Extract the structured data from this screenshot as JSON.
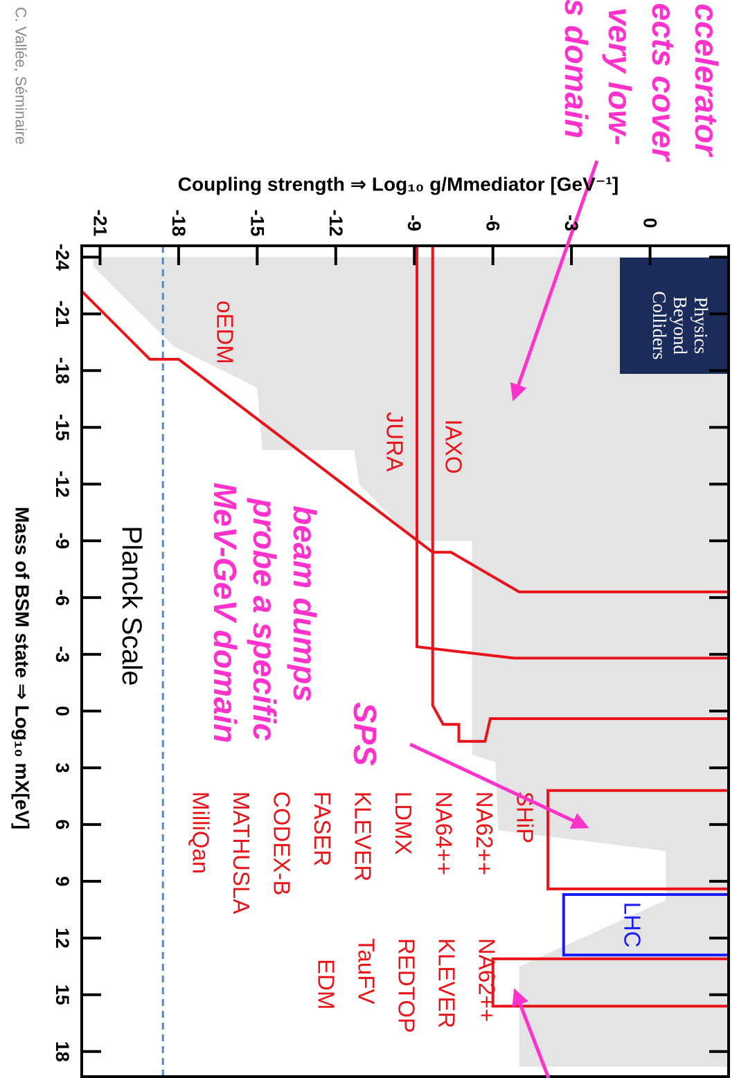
{
  "side_note": "C. Vallée, Séminaire",
  "chart_data": {
    "type": "line",
    "x_label": "Mass of BSM state ⇒ Log₁₀ mX[eV]",
    "y_label": "Coupling strength ⇒ Log₁₀ g/Mmediator [GeV⁻¹]",
    "xlim": [
      -24.6,
      19.4
    ],
    "ylim": [
      -21.7,
      3.0
    ],
    "xticks": [
      -24,
      -21,
      -18,
      -15,
      -12,
      -9,
      -6,
      -3,
      0,
      3,
      6,
      9,
      12,
      15,
      18
    ],
    "yticks": [
      -21,
      -18,
      -15,
      -12,
      -9,
      -6,
      -3,
      0
    ],
    "shaded": {
      "color": "#e4e4e4",
      "x": [
        -24.0,
        -24.0,
        18.8,
        18.8,
        13.5,
        10.0,
        7.4,
        6.3,
        2.7,
        2.3,
        -9.0,
        -9.0,
        -12.0,
        -13.8,
        -13.8,
        -17.1,
        -19.3,
        -23.5
      ],
      "y": [
        -21.25,
        3.0,
        3.0,
        -5.0,
        -5.0,
        0.6,
        0.6,
        -5.8,
        -5.9,
        -6.8,
        -6.8,
        -9.0,
        -11.1,
        -11.3,
        -14.8,
        -15.0,
        -18.2,
        -21.25
      ]
    },
    "series": [
      {
        "name": "oEDM",
        "color": "#e8141a",
        "x": [
          -22.2,
          -18.6,
          -18.6,
          -8.4,
          -8.4,
          -6.3,
          -6.3
        ],
        "y": [
          -21.7,
          -19.1,
          -18.0,
          -8.3,
          -7.6,
          -5.0,
          3.0
        ]
      },
      {
        "name": "IAXO",
        "color": "#e8141a",
        "x": [
          -24.6,
          -0.3,
          0.7,
          0.7,
          1.6,
          1.6,
          0.4,
          0.4
        ],
        "y": [
          -8.3,
          -8.3,
          -7.9,
          -7.3,
          -7.3,
          -6.3,
          -6.1,
          3.0
        ]
      },
      {
        "name": "JURA",
        "color": "#e8141a",
        "x": [
          -24.6,
          -3.4,
          -2.8,
          -2.8
        ],
        "y": [
          -8.9,
          -8.9,
          -5.2,
          3.0
        ]
      }
    ],
    "boxes": [
      {
        "color": "#e8141a",
        "x": [
          4.2,
          9.4
        ],
        "y": -3.9
      },
      {
        "name": "LHC",
        "color": "#1a1aff",
        "x": [
          9.7,
          12.9
        ],
        "y": -3.3
      },
      {
        "color": "#e8141a",
        "x": [
          13.1,
          15.6
        ],
        "y": -6.0
      }
    ],
    "reference_line": {
      "label": "Planck Scale",
      "y": -18.6,
      "color": "#5b86c0"
    },
    "experiment_lists": [
      [
        "SHiP",
        "NA62++",
        "NA64++",
        "LDMX",
        "KLEVER",
        "FASER",
        "CODEX-B",
        "MATHUSLA",
        "MilliQan"
      ],
      [
        "NA62++",
        "KLEVER",
        "REDTOP",
        "TauFV",
        "EDM"
      ]
    ],
    "annotations": [
      {
        "lines": [
          "ccelerator",
          "ects cover",
          "very low-",
          "s domain"
        ]
      },
      {
        "lines": [
          "SPS"
        ]
      },
      {
        "lines": [
          "beam dumps",
          "probe a specific",
          "MeV-GeV domain"
        ]
      }
    ],
    "logo": [
      "Physics",
      "Beyond",
      "Colliders"
    ]
  }
}
